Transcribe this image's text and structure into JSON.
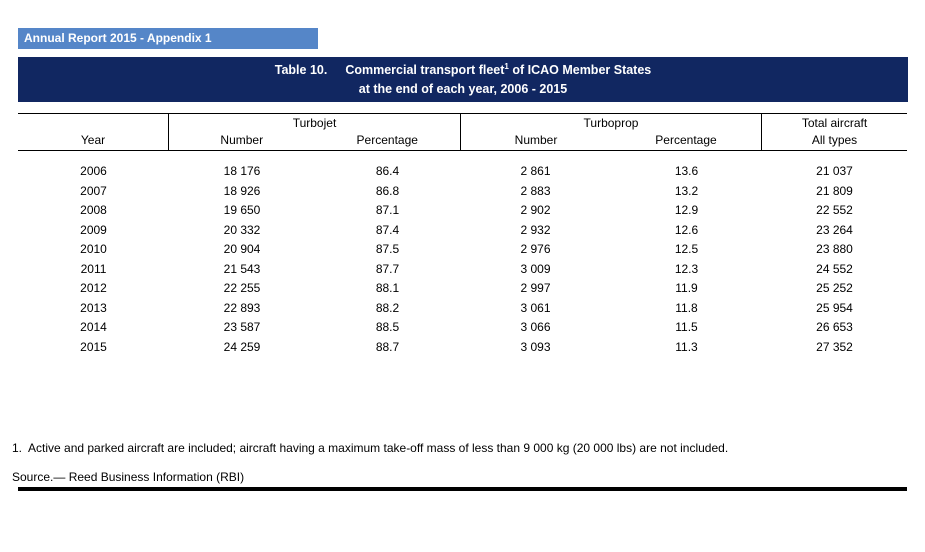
{
  "page": {
    "appendix_label": "Annual Report 2015 - Appendix 1"
  },
  "title": {
    "table_label": "Table 10.",
    "line1_pre": "Commercial transport fleet",
    "footnote_ref": "1",
    "line1_post": " of ICAO Member States",
    "line2": "at the end of each year, 2006 - 2015"
  },
  "table": {
    "groups": {
      "turbojet": "Turbojet",
      "turboprop": "Turboprop",
      "total_line1": "Total aircraft",
      "total_line2": "All types"
    },
    "columns": {
      "year": "Year",
      "number": "Number",
      "percentage": "Percentage"
    },
    "rows": [
      [
        "2006",
        "18 176",
        "86.4",
        "2 861",
        "13.6",
        "21 037"
      ],
      [
        "2007",
        "18 926",
        "86.8",
        "2 883",
        "13.2",
        "21 809"
      ],
      [
        "2008",
        "19 650",
        "87.1",
        "2 902",
        "12.9",
        "22 552"
      ],
      [
        "2009",
        "20 332",
        "87.4",
        "2 932",
        "12.6",
        "23 264"
      ],
      [
        "2010",
        "20 904",
        "87.5",
        "2 976",
        "12.5",
        "23 880"
      ],
      [
        "2011",
        "21 543",
        "87.7",
        "3 009",
        "12.3",
        "24 552"
      ],
      [
        "2012",
        "22 255",
        "88.1",
        "2 997",
        "11.9",
        "25 252"
      ],
      [
        "2013",
        "22 893",
        "88.2",
        "3 061",
        "11.8",
        "25 954"
      ],
      [
        "2014",
        "23 587",
        "88.5",
        "3 066",
        "11.5",
        "26 653"
      ],
      [
        "2015",
        "24 259",
        "88.7",
        "3 093",
        "11.3",
        "27 352"
      ]
    ]
  },
  "footnotes": {
    "note1": "1.  Active and parked aircraft are included; aircraft having a maximum take-off mass of less than 9 000 kg (20 000 lbs) are not included.",
    "source": "Source.— Reed Business Information (RBI)"
  },
  "colors": {
    "appendix_bar": "#5586C8",
    "title_bar": "#112761",
    "text": "#000000",
    "bar_text": "#FFFFFF"
  }
}
